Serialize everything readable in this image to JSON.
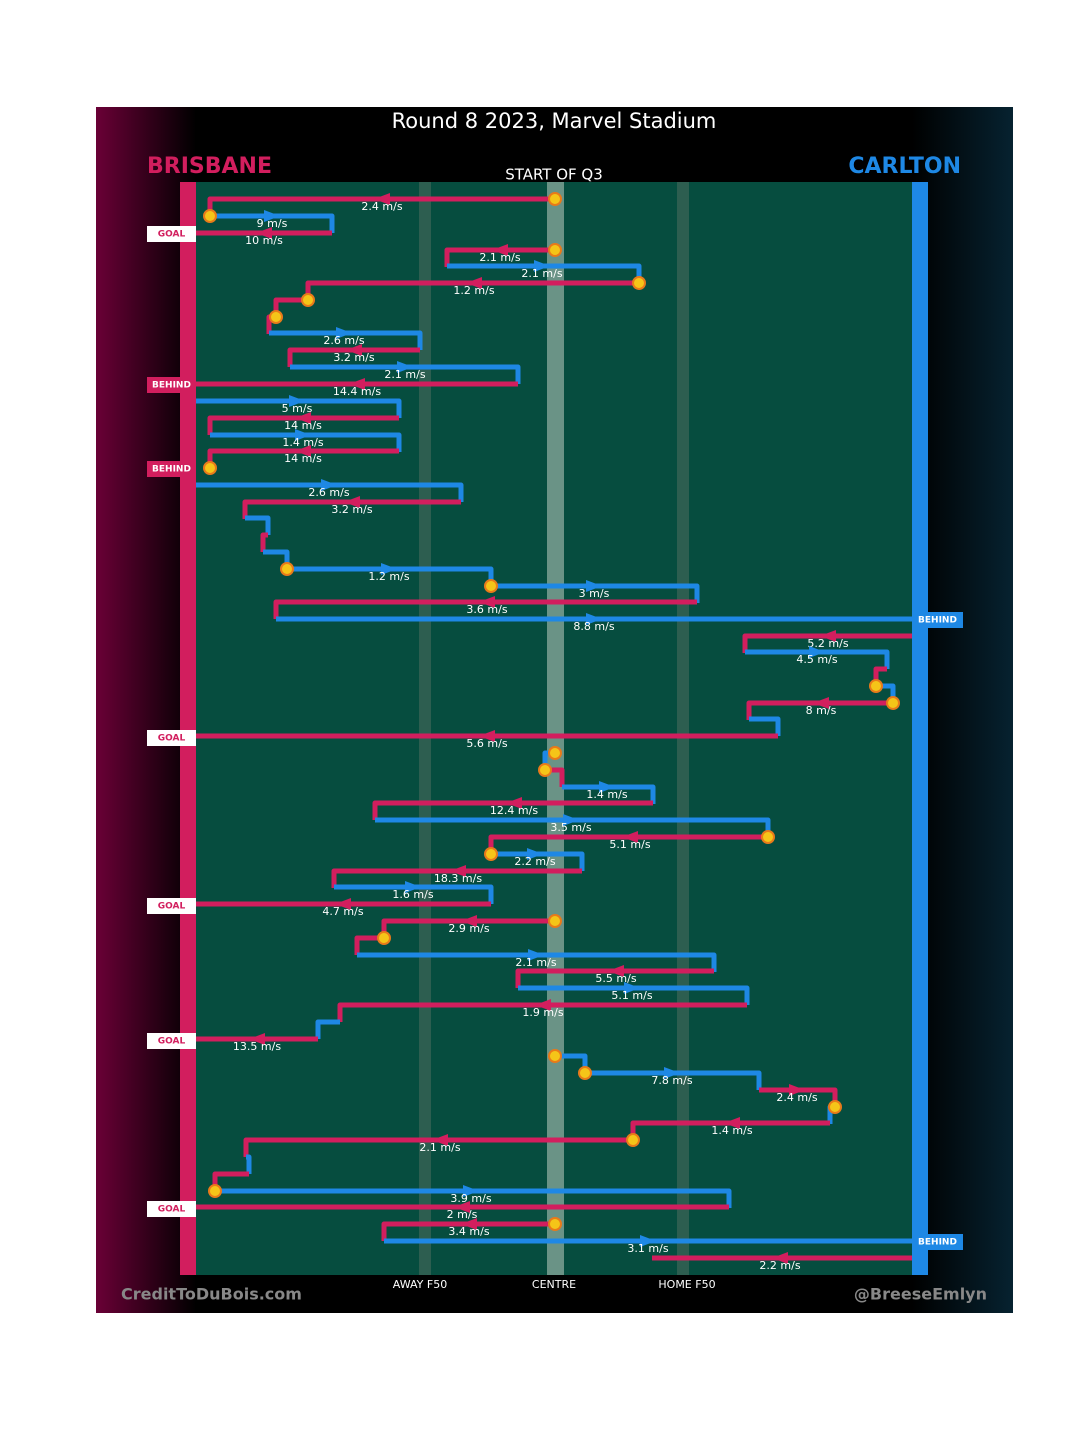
{
  "header": {
    "title": "Round 8 2023, Marvel Stadium",
    "home_team": "BRISBANE",
    "away_team": "CARLTON",
    "period": "START OF Q3"
  },
  "axis": {
    "labels": [
      "AWAY F50",
      "CENTRE",
      "HOME F50"
    ]
  },
  "footer": {
    "credit": "CreditToDuBois.com",
    "handle": "@BreeseEmlyn"
  },
  "speeds": [
    "2.4 m/s",
    "9 m/s",
    "10 m/s",
    "2.1 m/s",
    "2.1 m/s",
    "1.2 m/s",
    "2.6 m/s",
    "3.2 m/s",
    "2.1 m/s",
    "14.4 m/s",
    "5 m/s",
    "14 m/s",
    "1.4 m/s",
    "14 m/s",
    "2.6 m/s",
    "3.2 m/s",
    "1.2 m/s",
    "3 m/s",
    "3.6 m/s",
    "8.8 m/s",
    "5.2 m/s",
    "4.5 m/s",
    "8 m/s",
    "5.6 m/s",
    "1.4 m/s",
    "12.4 m/s",
    "3.5 m/s",
    "5.1 m/s",
    "2.2 m/s",
    "18.3 m/s",
    "1.6 m/s",
    "4.7 m/s",
    "2.9 m/s",
    "2.1 m/s",
    "5.5 m/s",
    "5.1 m/s",
    "1.9 m/s",
    "13.5 m/s",
    "7.8 m/s",
    "2.4 m/s",
    "1.4 m/s",
    "2.1 m/s",
    "3.9 m/s",
    "2 m/s",
    "3.4 m/s",
    "3.1 m/s",
    "2.2 m/s"
  ],
  "outcomes": [
    "GOAL",
    "BEHIND",
    "BEHIND",
    "BEHIND",
    "GOAL",
    "GOAL",
    "GOAL",
    "GOAL",
    "BEHIND"
  ]
}
